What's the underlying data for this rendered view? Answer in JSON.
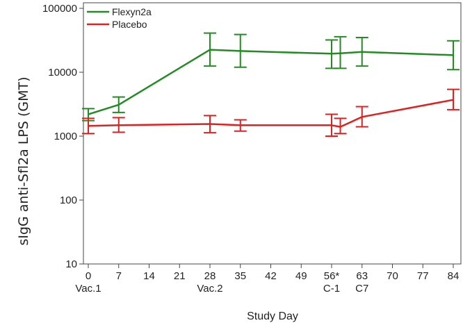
{
  "chart_data": {
    "type": "line",
    "title": "",
    "xlabel": "Study Day",
    "ylabel": "sIgG anti-Sfl2a LPS (GMT)",
    "y_scale": "log",
    "ylim": [
      10,
      100000
    ],
    "xlim": [
      0,
      84
    ],
    "y_ticks": [
      "10",
      "100",
      "1000",
      "10000",
      "100000"
    ],
    "x_ticks": [
      "0",
      "7",
      "14",
      "21",
      "28",
      "35",
      "42",
      "49",
      "56*",
      "63",
      "70",
      "77",
      "84"
    ],
    "x_sublabels": [
      {
        "x": 0,
        "label": "Vac.1"
      },
      {
        "x": 28,
        "label": "Vac.2"
      },
      {
        "x": 56,
        "label": "C-1"
      },
      {
        "x": 63,
        "label": "C7"
      }
    ],
    "legend_position": "top-left",
    "grid": false,
    "series": [
      {
        "name": "Flexyn2a",
        "color": "#228B22",
        "points": [
          {
            "x": 0,
            "y": 2200,
            "lo": 1750,
            "hi": 2700
          },
          {
            "x": 7,
            "y": 3100,
            "lo": 2350,
            "hi": 4100
          },
          {
            "x": 28,
            "y": 22500,
            "lo": 12500,
            "hi": 41000
          },
          {
            "x": 35,
            "y": 21500,
            "lo": 12000,
            "hi": 39000
          },
          {
            "x": 56,
            "y": 19500,
            "lo": 11500,
            "hi": 32000
          },
          {
            "x": 58,
            "y": 19800,
            "lo": 11500,
            "hi": 36000
          },
          {
            "x": 63,
            "y": 20800,
            "lo": 12500,
            "hi": 35000
          },
          {
            "x": 84,
            "y": 18500,
            "lo": 11000,
            "hi": 31000
          }
        ]
      },
      {
        "name": "Placebo",
        "color": "#E02020",
        "points": [
          {
            "x": 0,
            "y": 1450,
            "lo": 1100,
            "hi": 1900
          },
          {
            "x": 7,
            "y": 1480,
            "lo": 1150,
            "hi": 1950
          },
          {
            "x": 28,
            "y": 1550,
            "lo": 1130,
            "hi": 2100
          },
          {
            "x": 35,
            "y": 1480,
            "lo": 1200,
            "hi": 1800
          },
          {
            "x": 56,
            "y": 1480,
            "lo": 1000,
            "hi": 2200
          },
          {
            "x": 58,
            "y": 1400,
            "lo": 1100,
            "hi": 1900
          },
          {
            "x": 63,
            "y": 2000,
            "lo": 1400,
            "hi": 2900
          },
          {
            "x": 84,
            "y": 3700,
            "lo": 2600,
            "hi": 5400
          }
        ]
      }
    ]
  }
}
